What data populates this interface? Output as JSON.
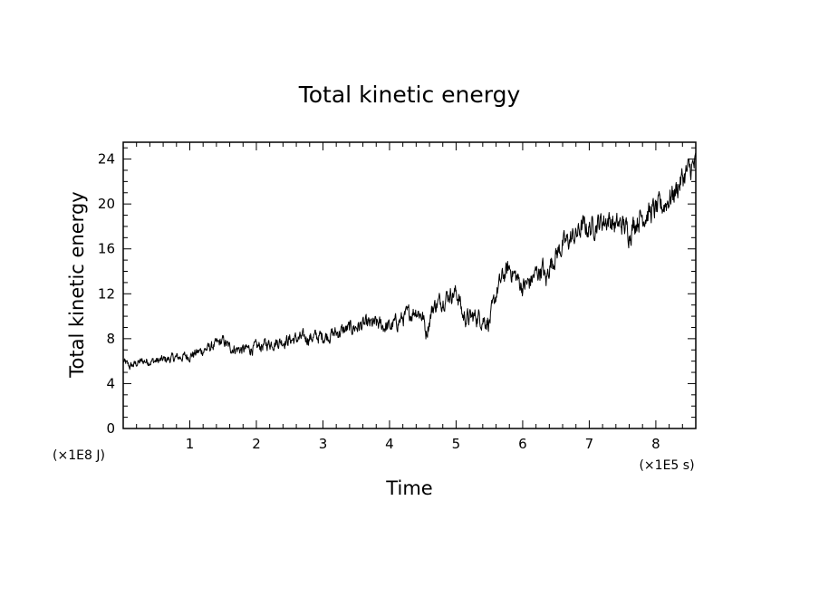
{
  "chart_data": {
    "type": "line",
    "title": "Total kinetic energy",
    "xlabel": "Time",
    "ylabel": "Total kinetic energy",
    "x_unit": "(×1E5 s)",
    "y_unit": "(×1E8 J)",
    "xlim": [
      0,
      8.6
    ],
    "ylim": [
      0,
      25.5
    ],
    "x_ticks": [
      "1",
      "2",
      "3",
      "4",
      "5",
      "6",
      "7",
      "8"
    ],
    "y_ticks": [
      "0",
      "4",
      "8",
      "12",
      "16",
      "20",
      "24"
    ],
    "grid": false,
    "legend": "none",
    "line_color": "#000000",
    "noise_amplitude": 0.55,
    "series": [
      {
        "x": [
          0.0,
          0.1,
          0.2,
          0.3,
          0.5,
          0.7,
          1.0,
          1.3,
          1.5,
          1.6,
          1.8,
          2.0,
          2.2,
          2.5,
          2.8,
          3.0,
          3.2,
          3.4,
          3.6,
          3.8,
          4.0,
          4.1,
          4.2,
          4.3,
          4.4,
          4.5,
          4.55,
          4.65,
          4.8,
          4.9,
          5.0,
          5.05,
          5.1,
          5.2,
          5.3,
          5.4,
          5.5,
          5.55,
          5.6,
          5.7,
          5.8,
          5.9,
          6.0,
          6.1,
          6.2,
          6.3,
          6.35,
          6.4,
          6.5,
          6.6,
          6.7,
          6.8,
          6.9,
          7.0,
          7.1,
          7.2,
          7.3,
          7.4,
          7.5,
          7.6,
          7.7,
          7.8,
          7.9,
          8.0,
          8.1,
          8.2,
          8.3,
          8.4,
          8.5,
          8.6
        ],
        "y": [
          6.0,
          5.5,
          5.8,
          6.0,
          6.0,
          6.2,
          6.5,
          7.2,
          7.8,
          7.2,
          7.0,
          7.2,
          7.6,
          7.9,
          8.1,
          8.2,
          8.5,
          8.9,
          9.2,
          9.3,
          9.0,
          9.4,
          9.8,
          10.2,
          10.6,
          10.0,
          8.5,
          10.8,
          11.5,
          12.0,
          12.1,
          11.5,
          10.0,
          9.8,
          10.0,
          9.8,
          9.5,
          10.5,
          12.0,
          13.5,
          14.3,
          13.5,
          12.6,
          13.0,
          13.8,
          14.3,
          13.0,
          14.5,
          15.5,
          16.3,
          16.8,
          17.2,
          18.0,
          17.8,
          18.2,
          18.5,
          18.6,
          18.0,
          18.2,
          17.5,
          18.5,
          19.0,
          19.2,
          19.5,
          19.8,
          20.5,
          21.2,
          22.3,
          23.0,
          23.5
        ]
      }
    ]
  }
}
